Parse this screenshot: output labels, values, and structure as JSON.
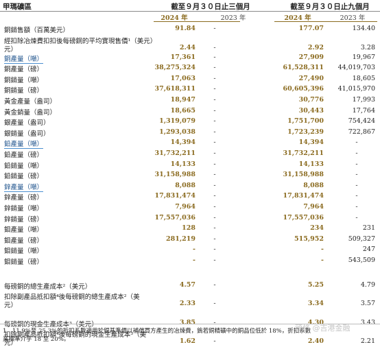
{
  "header": {
    "title": "甲瑪礦區",
    "group1": "截至９月３０日止三個月",
    "group2": "截至９月３０日止九個月",
    "year_2024": "2024 年",
    "year_2023": "2023 年"
  },
  "rows": [
    {
      "label": "銅銷售額（百萬美元）",
      "v": [
        "91.84",
        "-",
        "177.07",
        "134.40"
      ]
    },
    {
      "label": "經扣除冶煉費扣扣後每磅銅的平均實現售價¹（美元）",
      "label_line2": "元）",
      "v": [
        "2.44",
        "-",
        "2.92",
        "3.28"
      ]
    },
    {
      "label": "銅產量（噸）",
      "v": [
        "17,361",
        "-",
        "27,909",
        "19,967"
      ]
    },
    {
      "label": "銅產量（磅）",
      "v": [
        "38,275,324",
        "-",
        "61,528,311",
        "44,019,703"
      ]
    },
    {
      "label": "銅銷量（噸）",
      "v": [
        "17,063",
        "-",
        "27,490",
        "18,605"
      ]
    },
    {
      "label": "銅銷量（磅）",
      "v": [
        "37,618,311",
        "-",
        "60,605,396",
        "41,015,970"
      ]
    },
    {
      "label": "黃金產量（盎司）",
      "v": [
        "18,947",
        "-",
        "30,776",
        "17,993"
      ]
    },
    {
      "label": "黃金銷量（盎司）",
      "v": [
        "18,665",
        "-",
        "30,443",
        "17,764"
      ]
    },
    {
      "label": "銀產量（盎司）",
      "v": [
        "1,319,079",
        "-",
        "1,751,700",
        "754,424"
      ]
    },
    {
      "label": "銀銷量（盎司）",
      "v": [
        "1,293,038",
        "-",
        "1,723,239",
        "722,867"
      ]
    },
    {
      "label": "鉛產量（噸）",
      "v": [
        "14,394",
        "-",
        "14,394",
        "-"
      ]
    },
    {
      "label": "鉛產量（磅）",
      "v": [
        "31,732,211",
        "-",
        "31,732,211",
        "-"
      ]
    },
    {
      "label": "鉛銷量（噸）",
      "v": [
        "14,133",
        "-",
        "14,133",
        "-"
      ]
    },
    {
      "label": "鉛銷量（磅）",
      "v": [
        "31,158,988",
        "-",
        "31,158,988",
        "-"
      ]
    },
    {
      "label": "鋅產量（噸）",
      "v": [
        "8,088",
        "-",
        "8,088",
        "-"
      ]
    },
    {
      "label": "鋅產量（磅）",
      "v": [
        "17,831,474",
        "-",
        "17,831,474",
        "-"
      ]
    },
    {
      "label": "鋅銷量（噸）",
      "v": [
        "7,964",
        "-",
        "7,964",
        "-"
      ]
    },
    {
      "label": "鋅銷量（磅）",
      "v": [
        "17,557,036",
        "-",
        "17,557,036",
        "-"
      ]
    },
    {
      "label": "鉬產量（噸）",
      "v": [
        "128",
        "-",
        "234",
        "231"
      ]
    },
    {
      "label": "鉬產量（磅）",
      "v": [
        "281,219",
        "-",
        "515,952",
        "509,327"
      ]
    },
    {
      "label": "鉬銷量（噸）",
      "v": [
        "-",
        "-",
        "-",
        "247"
      ]
    },
    {
      "label": "鉬銷量（磅）",
      "v": [
        "-",
        "-",
        "-",
        "543,509"
      ]
    }
  ],
  "cost_rows": [
    {
      "label": "每磅銅的總生產成本²（美元）",
      "v": [
        "4.57",
        "-",
        "5.25",
        "4.79"
      ]
    },
    {
      "label": "扣除副產品抵扣額⁴後每磅銅的總生產成本²（美",
      "label_line2": "元）",
      "v": [
        "2.33",
        "-",
        "3.34",
        "3.57"
      ]
    },
    {
      "label": "每磅銅的現金生產成本³（美元）",
      "v": [
        "3.85",
        "-",
        "4.30",
        "3.43"
      ]
    },
    {
      "label": "扣除副產品抵扣額⁴後每磅銅的現金生產成本³（美",
      "label_line2": "元）",
      "v": [
        "1.62",
        "-",
        "2.40",
        "2.21"
      ]
    }
  ],
  "footnote": {
    "line1": "1　11.9%至 25.3%的折扣系數適用於銅基準價以補償買方產生的冶煉費，鎢若銅精礦中的銅品位低於 18%，折扣系數",
    "line2": "業標準介乎 18 至 20%。"
  },
  "watermark": "頭條 @吉港金融"
}
